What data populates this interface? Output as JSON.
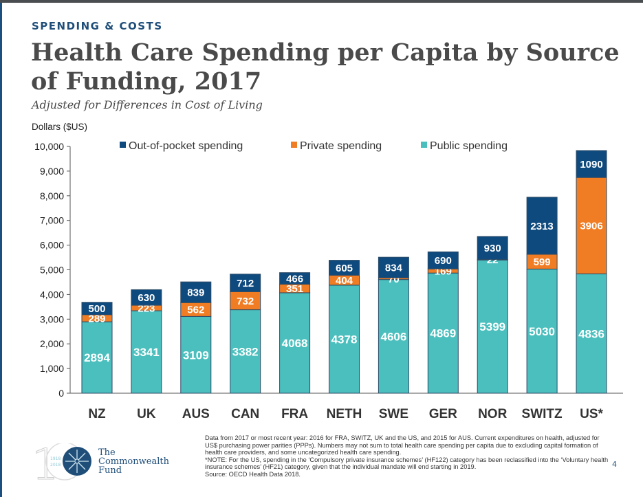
{
  "header": {
    "kicker": "SPENDING & COSTS",
    "title": "Health Care Spending per Capita by Source of Funding, 2017",
    "subtitle": "Adjusted for Differences in Cost of Living"
  },
  "chart_data": {
    "type": "bar",
    "stacked": true,
    "ylabel": "Dollars ($US)",
    "ylim": [
      0,
      10000
    ],
    "yticks": [
      "0",
      "1,000",
      "2,000",
      "3,000",
      "4,000",
      "5,000",
      "6,000",
      "7,000",
      "8,000",
      "9,000",
      "10,000"
    ],
    "grid": false,
    "legend_position": "top",
    "categories": [
      "NZ",
      "UK",
      "AUS",
      "CAN",
      "FRA",
      "NETH",
      "SWE",
      "GER",
      "NOR",
      "SWITZ",
      "US*"
    ],
    "series": [
      {
        "name": "Public spending",
        "color": "#4bbfbd",
        "values": [
          2894,
          3341,
          3109,
          3382,
          4068,
          4378,
          4606,
          4869,
          5399,
          5030,
          4836
        ]
      },
      {
        "name": "Private spending",
        "color": "#f07d24",
        "values": [
          289,
          223,
          562,
          732,
          351,
          404,
          70,
          169,
          22,
          599,
          3906
        ]
      },
      {
        "name": "Out-of-pocket spending",
        "color": "#0f4a7e",
        "values": [
          500,
          630,
          839,
          712,
          466,
          605,
          834,
          690,
          930,
          2313,
          1090
        ]
      }
    ],
    "legend_order": [
      "Out-of-pocket spending",
      "Private spending",
      "Public spending"
    ]
  },
  "footer": {
    "notes": [
      "Data from 2017 or most recent year: 2016 for FRA, SWITZ, UK and the US, and 2015 for AUS. Current expenditures on health, adjusted for US$ purchasing power parities (PPPs). Numbers may not sum to total health care spending per capita due to excluding capital formation of health care providers, and some uncategorized health care spending.",
      "*NOTE: For the US, spending in the ‘Compulsory private insurance schemes’ (HF122) category has been reclassified into the ‘Voluntary health insurance schemes’ (HF21) category, given that the individual mandate will end starting in 2019.",
      "Source: OECD Health Data 2018."
    ],
    "page_number": "4"
  },
  "logo": {
    "line1": "The",
    "line2": "Commonwealth",
    "line3": "Fund",
    "years": "1918 2018",
    "anniversary": "100"
  }
}
